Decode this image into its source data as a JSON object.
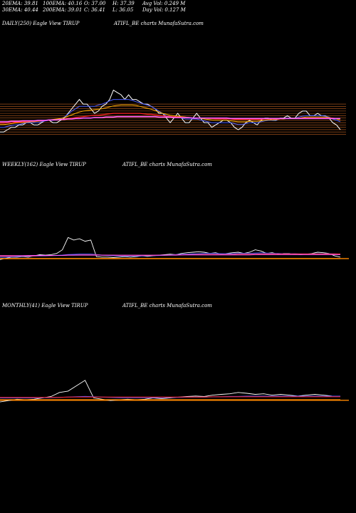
{
  "stats": {
    "ema20": "20EMA: 39.81",
    "ema30": "30EMA: 40.44",
    "ema100": "100EMA: 40.16",
    "ema200": "200EMA: 39.01",
    "open": "O: 37.00",
    "close": "C: 36.41",
    "high": "H: 37.39",
    "low": "L: 36.05",
    "avg_vol": "Avg Vol: 0.249 M",
    "day_vol": "Day Vol: 0.127 M"
  },
  "panels": {
    "daily": {
      "label": "DAILY(250) Eagle  View  TIRUP",
      "source": "ATIFL_BE charts MunafaSutra.com"
    },
    "weekly": {
      "label": "WEEKLY(162) Eagle  View  TIRUP",
      "source": "ATIFL_BE charts MunafaSutra.com"
    },
    "monthly": {
      "label": "MONTHLY(41) Eagle  View  TIRUP",
      "source": "ATIFL_BE charts MunafaSutra.com"
    }
  },
  "colors": {
    "price": "#ffffff",
    "ema_fast": "#4a5cff",
    "ema_mid": "#ffb000",
    "ema_slow": "#ff2020",
    "ema_long": "#ff60ff",
    "band": "#c06020",
    "support": "#ff8800"
  },
  "chart_data": [
    {
      "type": "line",
      "title": "DAILY(250)",
      "series": [
        {
          "values": [
            36,
            36,
            36.5,
            37,
            37,
            37.5,
            37.5,
            38,
            38,
            37.5,
            37.5,
            38,
            38.5,
            38.5,
            38,
            38,
            38.5,
            39,
            40,
            41,
            42,
            43,
            42,
            42,
            41,
            40,
            40.5,
            41.5,
            42,
            43,
            45,
            44.5,
            44,
            43,
            44,
            43,
            43,
            42.5,
            42,
            42,
            41.5,
            41,
            40,
            40,
            39,
            38,
            39,
            40,
            39,
            38,
            38,
            39,
            40,
            39,
            38,
            38,
            37,
            37.5,
            38,
            38.5,
            38.5,
            38,
            37,
            36.5,
            37,
            38,
            38.5,
            38,
            37.5,
            38.5,
            39,
            39,
            38.5,
            38.5,
            39,
            39,
            39.5,
            39,
            39,
            40,
            40.5,
            40.5,
            39.5,
            39.5,
            40,
            39.5,
            39.5,
            39,
            38,
            37.5,
            36.5
          ]
        },
        {
          "values": [
            37,
            37,
            37.2,
            37.4,
            37.5,
            37.6,
            37.8,
            38,
            38,
            38,
            38,
            38.2,
            38.4,
            38.5,
            38.5,
            38.6,
            38.8,
            39.2,
            39.8,
            40.5,
            41,
            41.5,
            41.5,
            41.5,
            41.5,
            41.5,
            41.8,
            42,
            42.3,
            42.7,
            43,
            43,
            43,
            43,
            43,
            42.8,
            42.5,
            42.3,
            42,
            41.8,
            41.5,
            41,
            40.5,
            40,
            39.5,
            39.3,
            39.3,
            39.2,
            39,
            38.8,
            38.8,
            38.8,
            38.8,
            38.6,
            38.4,
            38.2,
            38,
            38,
            38,
            38,
            38,
            38,
            37.8,
            37.6,
            37.6,
            37.8,
            38,
            38,
            38,
            38.2,
            38.4,
            38.5,
            38.5,
            38.6,
            38.8,
            38.9,
            39,
            39,
            39,
            39.2,
            39.4,
            39.5,
            39.5,
            39.5,
            39.5,
            39.5,
            39.4,
            39.2,
            38.8,
            38.5,
            38.2
          ]
        },
        {
          "values": [
            37.6,
            37.6,
            37.7,
            37.8,
            37.9,
            38,
            38,
            38.1,
            38.2,
            38.2,
            38.3,
            38.4,
            38.5,
            38.6,
            38.7,
            38.8,
            38.9,
            39.1,
            39.4,
            39.7,
            40,
            40.3,
            40.5,
            40.6,
            40.7,
            40.8,
            40.9,
            41,
            41.2,
            41.4,
            41.6,
            41.7,
            41.8,
            41.8,
            41.8,
            41.8,
            41.7,
            41.5,
            41.3,
            41.1,
            40.9,
            40.6,
            40.3,
            40,
            39.8,
            39.6,
            39.5,
            39.4,
            39.3,
            39.2,
            39.1,
            39,
            39,
            38.9,
            38.8,
            38.7,
            38.6,
            38.5,
            38.5,
            38.5,
            38.5,
            38.4,
            38.3,
            38.2,
            38.2,
            38.2,
            38.3,
            38.3,
            38.3,
            38.4,
            38.5,
            38.6,
            38.6,
            38.7,
            38.8,
            38.8,
            38.9,
            39,
            39,
            39,
            39.1,
            39.2,
            39.2,
            39.2,
            39.2,
            39.2,
            39.2,
            39.1,
            39,
            38.8,
            38.6
          ]
        },
        {
          "values": [
            37.9,
            37.9,
            38,
            38,
            38.1,
            38.1,
            38.2,
            38.2,
            38.3,
            38.3,
            38.4,
            38.4,
            38.5,
            38.5,
            38.6,
            38.6,
            38.7,
            38.8,
            38.9,
            39,
            39.1,
            39.2,
            39.3,
            39.4,
            39.5,
            39.6,
            39.6,
            39.7,
            39.8,
            39.9,
            40,
            40,
            40,
            40,
            40,
            40,
            40,
            40,
            39.9,
            39.8,
            39.8,
            39.7,
            39.6,
            39.5,
            39.4,
            39.3,
            39.3,
            39.2,
            39.2,
            39.1,
            39.1,
            39,
            39,
            39,
            39,
            38.9,
            38.9,
            38.8,
            38.8,
            38.8,
            38.8,
            38.8,
            38.7,
            38.7,
            38.7,
            38.7,
            38.7,
            38.7,
            38.7,
            38.7,
            38.8,
            38.8,
            38.8,
            38.8,
            38.8,
            38.9,
            38.9,
            38.9,
            38.9,
            39,
            39,
            39,
            39,
            39,
            39,
            39,
            39,
            39,
            39,
            38.9,
            38.9
          ]
        },
        {
          "values": [
            38.2,
            38.2,
            38.2,
            38.3,
            38.3,
            38.3,
            38.4,
            38.4,
            38.4,
            38.4,
            38.5,
            38.5,
            38.5,
            38.6,
            38.6,
            38.6,
            38.7,
            38.7,
            38.8,
            38.8,
            38.9,
            38.9,
            39,
            39,
            39,
            39.1,
            39.1,
            39.1,
            39.2,
            39.2,
            39.2,
            39.3,
            39.3,
            39.3,
            39.3,
            39.3,
            39.3,
            39.3,
            39.3,
            39.3,
            39.3,
            39.3,
            39.2,
            39.2,
            39.2,
            39.2,
            39.1,
            39.1,
            39.1,
            39.1,
            39.1,
            39,
            39,
            39,
            39,
            39,
            39,
            39,
            39,
            39,
            39,
            38.9,
            38.9,
            38.9,
            38.9,
            38.9,
            38.9,
            38.9,
            38.9,
            38.9,
            38.9,
            38.9,
            38.9,
            38.9,
            38.9,
            38.9,
            38.9,
            38.9,
            38.9,
            38.9,
            38.9,
            38.9,
            38.9,
            38.9,
            38.9,
            38.9,
            38.9,
            38.9,
            38.9,
            38.9,
            38.9
          ]
        }
      ]
    },
    {
      "type": "line",
      "title": "WEEKLY(162)",
      "series": [
        {
          "values": [
            36,
            36.5,
            37,
            37,
            37.2,
            37,
            37.5,
            38,
            37.8,
            38,
            38.5,
            40,
            45,
            44,
            44.5,
            43.5,
            44,
            37.2,
            37,
            37,
            36.8,
            37,
            37.2,
            37,
            37.2,
            37.5,
            37.3,
            37.5,
            37.8,
            38,
            38.2,
            38,
            38.5,
            38.8,
            39,
            39.2,
            39,
            38.5,
            38.8,
            38.2,
            38.5,
            38.8,
            39,
            38.5,
            39,
            40,
            39.5,
            38.5,
            38.8,
            38.2,
            38.5,
            38.5,
            38.2,
            38,
            38.2,
            38.5,
            39,
            38.8,
            38.5,
            37.5,
            37
          ]
        },
        {
          "values": [
            37,
            37,
            37.1,
            37.2,
            37.3,
            37.3,
            37.4,
            37.5,
            37.5,
            37.6,
            37.7,
            37.8,
            38,
            38.1,
            38.2,
            38.2,
            38.2,
            38,
            37.8,
            37.7,
            37.6,
            37.5,
            37.5,
            37.5,
            37.5,
            37.5,
            37.6,
            37.6,
            37.7,
            37.8,
            37.9,
            38,
            38.1,
            38.2,
            38.3,
            38.4,
            38.5,
            38.5,
            38.5,
            38.4,
            38.4,
            38.4,
            38.5,
            38.5,
            38.5,
            38.6,
            38.7,
            38.6,
            38.5,
            38.5,
            38.4,
            38.4,
            38.4,
            38.3,
            38.3,
            38.3,
            38.4,
            38.4,
            38.4,
            38.3,
            38.2
          ]
        },
        {
          "values": [
            37.4,
            37.4,
            37.4,
            37.5,
            37.5,
            37.5,
            37.5,
            37.6,
            37.6,
            37.6,
            37.7,
            37.7,
            37.8,
            37.8,
            37.9,
            37.9,
            37.9,
            37.9,
            37.8,
            37.8,
            37.8,
            37.7,
            37.7,
            37.7,
            37.7,
            37.7,
            37.7,
            37.7,
            37.8,
            37.8,
            37.8,
            37.9,
            37.9,
            38,
            38,
            38.1,
            38.1,
            38.1,
            38.1,
            38.1,
            38.1,
            38.1,
            38.2,
            38.2,
            38.2,
            38.2,
            38.3,
            38.3,
            38.3,
            38.3,
            38.3,
            38.3,
            38.3,
            38.3,
            38.3,
            38.3,
            38.3,
            38.3,
            38.3,
            38.3,
            38.3
          ]
        },
        {
          "values": [
            37.6,
            37.6,
            37.6,
            37.6,
            37.6,
            37.7,
            37.7,
            37.7,
            37.7,
            37.7,
            37.7,
            37.7,
            37.8,
            37.8,
            37.8,
            37.8,
            37.8,
            37.8,
            37.8,
            37.8,
            37.8,
            37.8,
            37.8,
            37.8,
            37.8,
            37.8,
            37.8,
            37.8,
            37.8,
            37.8,
            37.8,
            37.8,
            37.9,
            37.9,
            37.9,
            37.9,
            37.9,
            37.9,
            37.9,
            37.9,
            37.9,
            37.9,
            37.9,
            37.9,
            37.9,
            38,
            38,
            38,
            38,
            38,
            38,
            38,
            38,
            38,
            38,
            38,
            38,
            38,
            38,
            38,
            38
          ]
        },
        {
          "values": [
            36.4,
            36.4,
            36.4,
            36.4,
            36.4,
            36.4,
            36.4,
            36.4,
            36.4,
            36.4,
            36.4,
            36.4,
            36.4,
            36.4,
            36.4,
            36.4,
            36.4,
            36.4,
            36.4,
            36.4,
            36.4,
            36.4,
            36.4,
            36.4,
            36.4,
            36.4,
            36.4,
            36.4,
            36.4,
            36.4,
            36.4,
            36.4,
            36.4,
            36.4,
            36.4,
            36.4,
            36.4,
            36.4,
            36.4,
            36.4,
            36.4,
            36.4,
            36.4,
            36.4,
            36.4,
            36.4,
            36.4,
            36.4,
            36.4,
            36.4,
            36.4,
            36.4,
            36.4,
            36.4,
            36.4,
            36.4,
            36.4,
            36.4,
            36.4,
            36.4,
            36.4
          ]
        }
      ]
    },
    {
      "type": "line",
      "title": "MONTHLY(41)",
      "series": [
        {
          "values": [
            36,
            36.5,
            37,
            36.8,
            37,
            37.5,
            38,
            39.5,
            40,
            42,
            44,
            37.5,
            37,
            36.5,
            36.8,
            37,
            36.8,
            37,
            37.5,
            37.2,
            37.5,
            37.8,
            38,
            38.2,
            38,
            38.5,
            38.8,
            39,
            39.5,
            39.2,
            38.8,
            39,
            38.5,
            38.8,
            38.5,
            38.2,
            38.5,
            38.8,
            38.5,
            38.2,
            38
          ]
        },
        {
          "values": [
            37.5,
            37.5,
            37.5,
            37.5,
            37.5,
            37.6,
            37.6,
            37.7,
            37.8,
            37.9,
            38,
            37.9,
            37.8,
            37.7,
            37.6,
            37.6,
            37.6,
            37.6,
            37.6,
            37.6,
            37.7,
            37.7,
            37.8,
            37.8,
            37.8,
            37.9,
            37.9,
            38,
            38,
            38.1,
            38.1,
            38.1,
            38.1,
            38.1,
            38.1,
            38.1,
            38.1,
            38.1,
            38.1,
            38.1,
            38.1
          ]
        },
        {
          "values": [
            37.7,
            37.7,
            37.7,
            37.7,
            37.7,
            37.7,
            37.7,
            37.7,
            37.8,
            37.8,
            37.8,
            37.8,
            37.8,
            37.8,
            37.8,
            37.8,
            37.8,
            37.8,
            37.8,
            37.8,
            37.8,
            37.8,
            37.8,
            37.8,
            37.8,
            37.9,
            37.9,
            37.9,
            37.9,
            37.9,
            37.9,
            37.9,
            37.9,
            37.9,
            37.9,
            37.9,
            37.9,
            37.9,
            37.9,
            37.9,
            37.9
          ]
        },
        {
          "values": [
            36.8,
            36.8,
            36.8,
            36.8,
            36.8,
            36.8,
            36.8,
            36.8,
            36.8,
            36.8,
            36.8,
            36.8,
            36.8,
            36.8,
            36.8,
            36.8,
            36.8,
            36.8,
            36.8,
            36.8,
            36.8,
            36.8,
            36.8,
            36.8,
            36.8,
            36.8,
            36.8,
            36.8,
            36.8,
            36.8,
            36.8,
            36.8,
            36.8,
            36.8,
            36.8,
            36.8,
            36.8,
            36.8,
            36.8,
            36.8,
            36.8
          ]
        }
      ]
    }
  ]
}
